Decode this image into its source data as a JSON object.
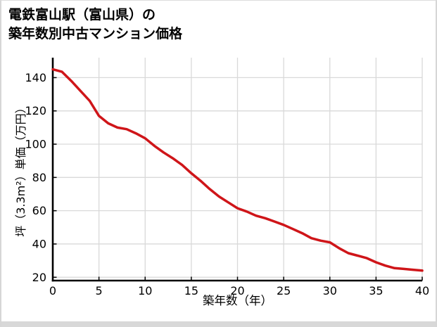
{
  "chart_data": {
    "type": "line",
    "title_lines": [
      "電鉄富山駅（富山県）の",
      "築年数別中古マンション価格"
    ],
    "xlabel": "築年数（年）",
    "ylabel": "坪（3.3m²）単価（万円）",
    "x": [
      0,
      1,
      2,
      3,
      4,
      5,
      6,
      7,
      8,
      9,
      10,
      11,
      12,
      13,
      14,
      15,
      16,
      17,
      18,
      19,
      20,
      21,
      22,
      23,
      24,
      25,
      26,
      27,
      28,
      29,
      30,
      31,
      32,
      33,
      34,
      35,
      36,
      37,
      38,
      39,
      40
    ],
    "values": [
      145,
      143.5,
      138,
      132,
      126,
      117,
      112.5,
      110,
      109,
      106.5,
      103.5,
      99,
      95,
      91.5,
      87.5,
      82.5,
      78,
      73,
      68.5,
      65,
      61.5,
      59.5,
      57,
      55.5,
      53.5,
      51.5,
      49,
      46.5,
      43.5,
      42,
      41,
      37.5,
      34.5,
      33,
      31.5,
      29,
      27,
      25.5,
      25,
      24.5,
      24
    ],
    "xticks": [
      0,
      5,
      10,
      15,
      20,
      25,
      30,
      35,
      40
    ],
    "yticks": [
      20,
      40,
      60,
      80,
      100,
      120,
      140
    ],
    "xlim": [
      0,
      40
    ],
    "ylim": [
      18,
      152
    ],
    "grid": true,
    "legend": false,
    "colors": {
      "line": "#cf1519",
      "grid": "#d9d9d9",
      "axis": "#000000",
      "text": "#000000",
      "background": "#ffffff",
      "window_edge": "#d8d8d8"
    }
  }
}
